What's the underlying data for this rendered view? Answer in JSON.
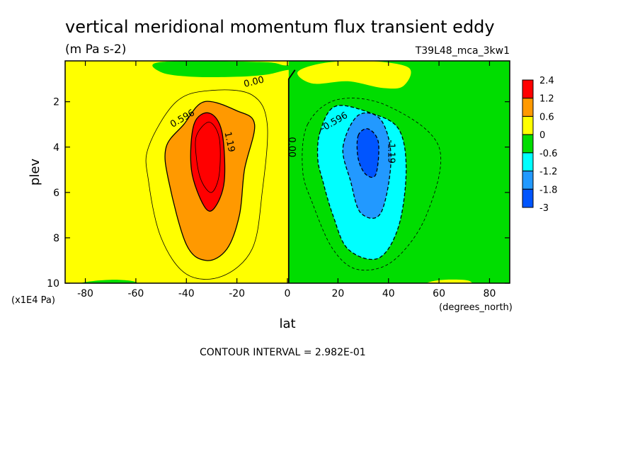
{
  "chart_data": {
    "type": "heatmap",
    "title": "vertical meridional momentum flux transient eddy",
    "units_label": "(m Pa s-2)",
    "run_label": "T39L48_mca_3kw1",
    "xlabel": "lat",
    "xunits": "(degrees_north)",
    "ylabel": "plev",
    "yunits": "(x1E4 Pa)",
    "xlim": [
      -88,
      88
    ],
    "ylim": [
      10,
      0.2
    ],
    "x_ticks": [
      -80,
      -60,
      -40,
      -20,
      0,
      20,
      40,
      60,
      80
    ],
    "x_tick_labels": [
      "-80",
      "-60",
      "-40",
      "-20",
      "0",
      "20",
      "40",
      "60",
      "80"
    ],
    "y_ticks": [
      2,
      4,
      6,
      8,
      10
    ],
    "y_tick_labels": [
      "2",
      "4",
      "6",
      "8",
      "10"
    ],
    "contour_interval_text": "CONTOUR INTERVAL = 2.982E-01",
    "contour_labels": [
      {
        "text": "0.00",
        "lat": -13,
        "plev": 1.25,
        "rot": -14
      },
      {
        "text": "0.596",
        "lat": -41,
        "plev": 2.85,
        "rot": -30
      },
      {
        "text": "1.19",
        "lat": -24,
        "plev": 3.8,
        "rot": 78
      },
      {
        "text": "0.00",
        "lat": 0.5,
        "plev": 4.0,
        "rot": 90
      },
      {
        "text": "-0.596",
        "lat": 19,
        "plev": 3.0,
        "rot": -30
      },
      {
        "text": "-1.19",
        "lat": 40,
        "plev": 4.2,
        "rot": 90
      }
    ],
    "legend": {
      "placement": "right",
      "levels": [
        "2.4",
        "1.2",
        "0.6",
        "0",
        "-0.6",
        "-1.2",
        "-1.8",
        "-3"
      ],
      "colors": [
        "#ff0000",
        "#ff9900",
        "#ffff00",
        "#00dd00",
        "#00ffff",
        "#2299ff",
        "#0055ff"
      ]
    },
    "fields": {
      "background": "#ffff00",
      "south_regions": [
        {
          "level": "0.6 to 1.2",
          "color": "#ff9900",
          "outline": [
            [
              -41,
              3.0
            ],
            [
              -33,
              2.0
            ],
            [
              -20,
              2.4
            ],
            [
              -13,
              3.0
            ],
            [
              -17,
              5.0
            ],
            [
              -19,
              7.0
            ],
            [
              -24,
              8.5
            ],
            [
              -32,
              9.0
            ],
            [
              -40,
              8.3
            ],
            [
              -47,
              5.5
            ],
            [
              -48,
              4.0
            ]
          ]
        },
        {
          "level": "1.2 to 2.4",
          "color": "#ff0000",
          "outline": [
            [
              -37,
              3.0
            ],
            [
              -31,
              2.5
            ],
            [
              -26,
              3.3
            ],
            [
              -25,
              5.5
            ],
            [
              -29,
              6.7
            ],
            [
              -33,
              6.6
            ],
            [
              -38,
              5.0
            ]
          ]
        }
      ],
      "north_regions": [
        {
          "level": "0 to -0.6",
          "color": "#00dd00",
          "outline": [
            [
              0.2,
              0.2
            ],
            [
              5,
              0.2
            ],
            [
              5,
              10
            ],
            [
              0.2,
              10
            ]
          ]
        },
        {
          "level": "-0.6 to -1.2",
          "color": "#00ffff",
          "outline": [
            [
              13,
              3.3
            ],
            [
              19,
              2.2
            ],
            [
              33,
              2.5
            ],
            [
              44,
              3.2
            ],
            [
              47,
              5.0
            ],
            [
              44,
              7.5
            ],
            [
              36,
              8.9
            ],
            [
              24,
              8.5
            ],
            [
              18,
              7.0
            ],
            [
              14,
              5.5
            ],
            [
              12,
              4.5
            ]
          ]
        },
        {
          "level": "-1.2 to -1.8",
          "color": "#2299ff",
          "outline": [
            [
              22,
              4.0
            ],
            [
              28,
              2.6
            ],
            [
              37,
              2.8
            ],
            [
              41,
              4.5
            ],
            [
              37,
              6.9
            ],
            [
              29,
              6.9
            ],
            [
              25,
              5.5
            ]
          ]
        },
        {
          "level": "below -1.8",
          "color": "#0055ff",
          "outline": [
            [
              28,
              3.5
            ],
            [
              32,
              3.2
            ],
            [
              36,
              3.8
            ],
            [
              35,
              5.2
            ],
            [
              31,
              5.2
            ],
            [
              28,
              4.5
            ]
          ]
        }
      ]
    }
  }
}
